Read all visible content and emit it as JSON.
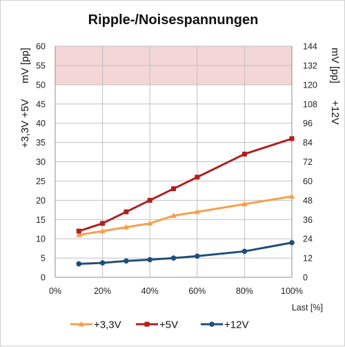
{
  "chart_data": {
    "type": "line",
    "title": "Ripple-/Noisespannungen",
    "xlabel": "Last [%]",
    "ylabel_left_top": "mV [pp]",
    "ylabel_left_bottom": "+3,3V +5V",
    "ylabel_right_top": "mV [pp]",
    "ylabel_right_bottom": "+12V",
    "xlim": [
      0,
      100
    ],
    "ylim_left": [
      0,
      60
    ],
    "ylim_right": [
      0,
      144
    ],
    "x_ticks": [
      "0%",
      "20%",
      "40%",
      "60%",
      "80%",
      "100%"
    ],
    "y_ticks_left": [
      "0",
      "5",
      "10",
      "15",
      "20",
      "25",
      "30",
      "35",
      "40",
      "45",
      "50",
      "55",
      "60"
    ],
    "y_ticks_right": [
      "0",
      "12",
      "24",
      "36",
      "48",
      "60",
      "72",
      "84",
      "96",
      "108",
      "120",
      "132",
      "144"
    ],
    "limit_band_left": [
      50,
      60
    ],
    "grid": true,
    "legend_position": "bottom",
    "x": [
      10,
      20,
      30,
      40,
      50,
      60,
      80,
      100
    ],
    "series": [
      {
        "name": "+3,3V",
        "axis": "left",
        "color": "#f5a04a",
        "marker": "triangle",
        "values": [
          11,
          12,
          13,
          14,
          16,
          17,
          19,
          21
        ]
      },
      {
        "name": "+5V",
        "axis": "left",
        "color": "#b01e1e",
        "marker": "square",
        "values": [
          12,
          14,
          17,
          20,
          23,
          26,
          32,
          36
        ]
      },
      {
        "name": "+12V",
        "axis": "right",
        "color": "#1f4e79",
        "marker": "circle",
        "values": [
          8.4,
          9.0,
          10.2,
          11.0,
          12.0,
          13.2,
          16.2,
          21.6
        ]
      }
    ],
    "colors": {
      "limit_band": "#f4d6d6",
      "grid": "#bfbfbf"
    }
  }
}
